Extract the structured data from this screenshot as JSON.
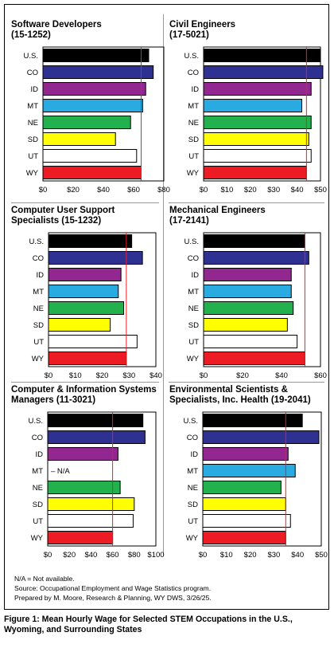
{
  "figure": {
    "caption_line1": "Figure 1: Mean Hourly Wage for Selected STEM Occupations in the U.S.,",
    "caption_line2": "Wyoming, and Surrounding States",
    "notes": [
      "N/A = Not available.",
      "Source: Occupational Employment and Wage Statistics program.",
      "Prepared by M. Moore, Research & Planning, WY DWS, 3/26/25."
    ]
  },
  "colors": {
    "U.S.": "#000000",
    "CO": "#2e3192",
    "ID": "#92278f",
    "MT": "#29abe2",
    "NE": "#22b14c",
    "SD": "#ffff00",
    "UT": "#ffffff",
    "WY": "#ed1c24",
    "reference_line": "#ed1c24"
  },
  "chart_data": [
    {
      "type": "bar",
      "orientation": "horizontal",
      "title": "Software Developers\n(15-1252)",
      "categories": [
        "U.S.",
        "CO",
        "ID",
        "MT",
        "NE",
        "SD",
        "UT",
        "WY"
      ],
      "values": [
        70,
        73,
        68,
        66,
        58,
        48,
        62,
        65
      ],
      "xlim": [
        0,
        80
      ],
      "xticks": [
        "$0",
        "$20",
        "$40",
        "$60",
        "$80"
      ],
      "reference_line": 65
    },
    {
      "type": "bar",
      "orientation": "horizontal",
      "title": "Civil Engineers\n(17-5021)",
      "categories": [
        "U.S.",
        "CO",
        "ID",
        "MT",
        "NE",
        "SD",
        "UT",
        "WY"
      ],
      "values": [
        50,
        51,
        46,
        42,
        46,
        45,
        46,
        44
      ],
      "xlim": [
        0,
        50
      ],
      "xticks": [
        "$0",
        "$10",
        "$20",
        "$30",
        "$40",
        "$50"
      ],
      "reference_line": 44
    },
    {
      "type": "bar",
      "orientation": "horizontal",
      "title": "Computer User Support\nSpecialists (15-1232)",
      "categories": [
        "U.S.",
        "CO",
        "ID",
        "MT",
        "NE",
        "SD",
        "UT",
        "WY"
      ],
      "values": [
        31,
        35,
        27,
        26,
        28,
        23,
        33,
        29
      ],
      "xlim": [
        0,
        40
      ],
      "xticks": [
        "$0",
        "$10",
        "$20",
        "$30",
        "$40"
      ],
      "reference_line": 29
    },
    {
      "type": "bar",
      "orientation": "horizontal",
      "title": "Mechanical Engineers\n(17-2141)",
      "categories": [
        "U.S.",
        "CO",
        "ID",
        "MT",
        "NE",
        "SD",
        "UT",
        "WY"
      ],
      "values": [
        52,
        54,
        45,
        45,
        46,
        43,
        48,
        52
      ],
      "xlim": [
        0,
        60
      ],
      "xticks": [
        "$0",
        "$20",
        "$40",
        "$60"
      ],
      "reference_line": 52
    },
    {
      "type": "bar",
      "orientation": "horizontal",
      "title": "Computer & Information Systems\nManagers (11-3021)",
      "categories": [
        "U.S.",
        "CO",
        "ID",
        "MT",
        "NE",
        "SD",
        "UT",
        "WY"
      ],
      "values": [
        88,
        90,
        65,
        null,
        67,
        80,
        79,
        60
      ],
      "value_labels": [
        "",
        "",
        "",
        "N/A",
        "",
        "",
        "",
        ""
      ],
      "xlim": [
        0,
        100
      ],
      "xticks": [
        "$0",
        "$20",
        "$40",
        "$60",
        "$80",
        "$100"
      ],
      "reference_line": 60
    },
    {
      "type": "bar",
      "orientation": "horizontal",
      "title": "Environmental Scientists &\nSpecialists, Inc. Health (19-2041)",
      "categories": [
        "U.S.",
        "CO",
        "ID",
        "MT",
        "NE",
        "SD",
        "UT",
        "WY"
      ],
      "values": [
        42,
        49,
        36,
        39,
        33,
        35,
        37,
        35
      ],
      "xlim": [
        0,
        50
      ],
      "xticks": [
        "$0",
        "$10",
        "$20",
        "$30",
        "$40",
        "$50"
      ],
      "reference_line": 35
    }
  ]
}
